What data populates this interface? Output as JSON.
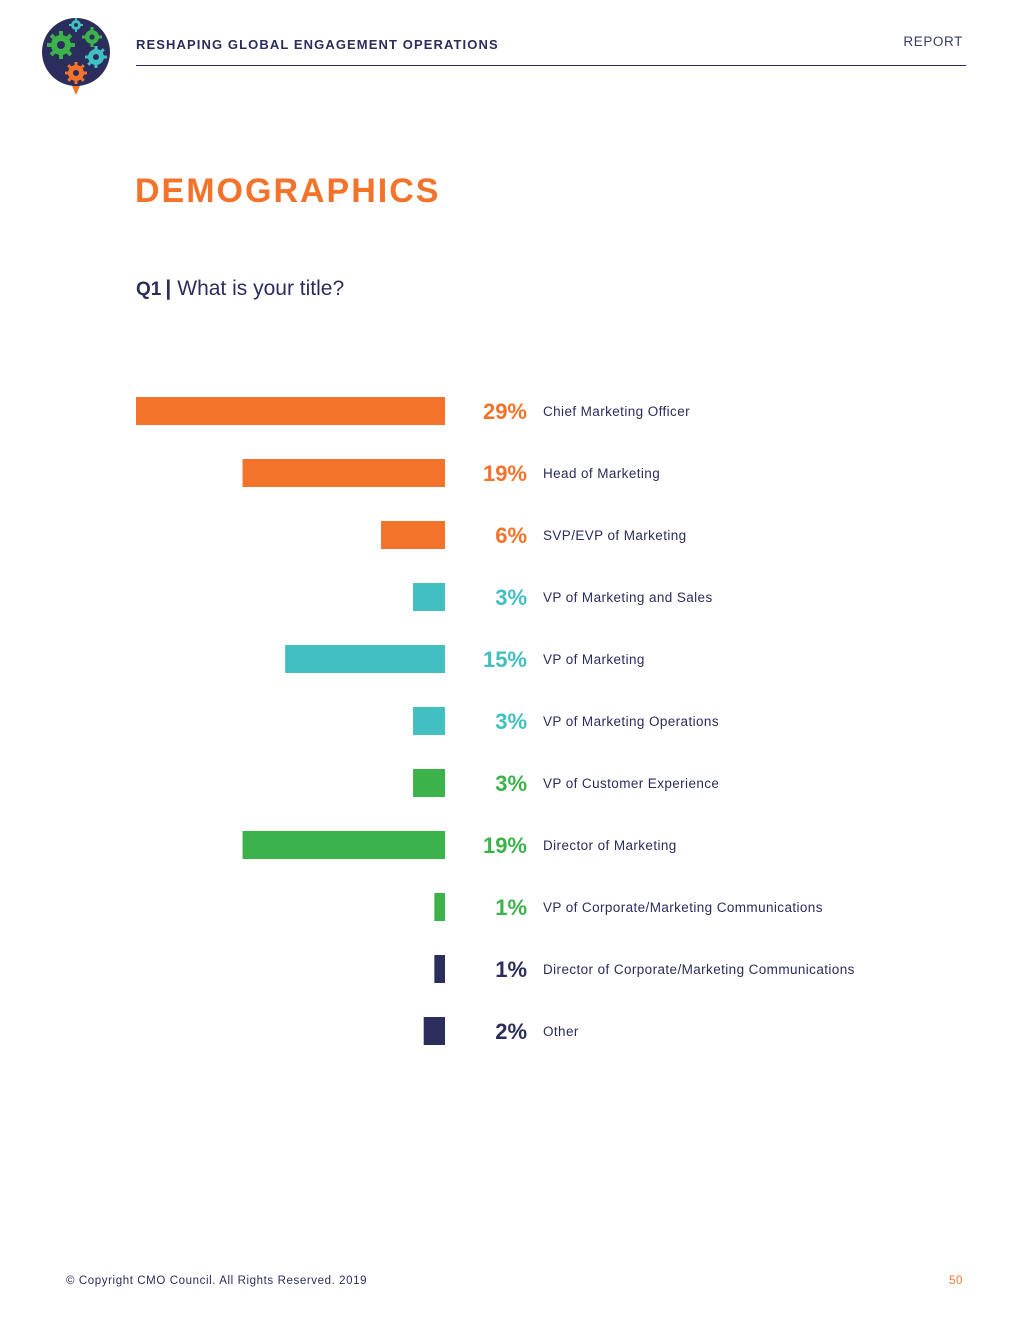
{
  "header": {
    "title": "RESHAPING GLOBAL ENGAGEMENT OPERATIONS",
    "section": "REPORT"
  },
  "logo": {
    "icon": "gears-logo-icon",
    "colors": [
      "#2b2d5c",
      "#3cb34a",
      "#41bfc1",
      "#f27329"
    ]
  },
  "page": {
    "title": "DEMOGRAPHICS"
  },
  "question": {
    "number": "Q1",
    "separator": "|",
    "text": "What is your title?"
  },
  "chart_data": {
    "type": "bar",
    "orientation": "horizontal",
    "categories": [
      "Chief Marketing Officer",
      "Head of Marketing",
      "SVP/EVP of Marketing",
      "VP of Marketing and Sales",
      "VP of Marketing",
      "VP of Marketing Operations",
      "VP of Customer Experience",
      "Director of Marketing",
      "VP of Corporate/Marketing Communications",
      "Director of Corporate/Marketing Communications",
      "Other"
    ],
    "values": [
      29,
      19,
      6,
      3,
      15,
      3,
      3,
      19,
      1,
      1,
      2
    ],
    "value_labels": [
      "29%",
      "19%",
      "6%",
      "3%",
      "15%",
      "3%",
      "3%",
      "19%",
      "1%",
      "1%",
      "2%"
    ],
    "colors": [
      "#f27329",
      "#f27329",
      "#f27329",
      "#41bfc1",
      "#41bfc1",
      "#41bfc1",
      "#3cb34a",
      "#3cb34a",
      "#3cb34a",
      "#2b2d5c",
      "#2b2d5c"
    ],
    "unit": "%",
    "xlim": [
      0,
      29
    ],
    "grid": false,
    "legend": "none"
  },
  "footer": {
    "copyright": "© Copyright CMO Council. All Rights Reserved. 2019",
    "page_number": "50"
  }
}
